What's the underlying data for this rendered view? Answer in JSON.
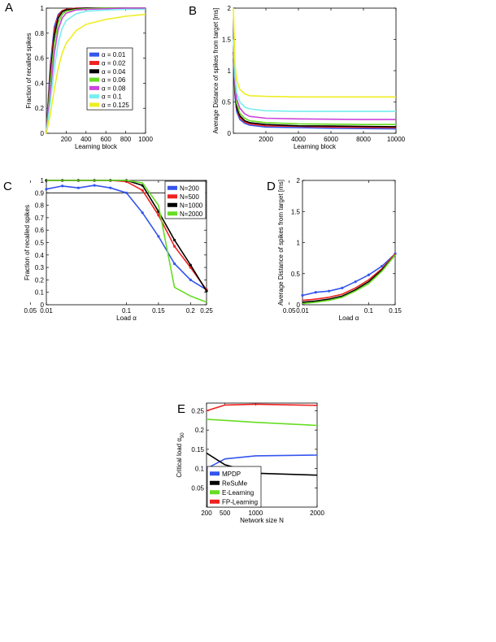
{
  "chart_data": [
    {
      "id": "A",
      "panel_label": "A",
      "type": "line",
      "xlabel": "Learning block",
      "ylabel": "Fraction of recalled spikes",
      "xlim": [
        0,
        1000
      ],
      "ylim": [
        0,
        1
      ],
      "xticks": [
        200,
        400,
        600,
        800,
        1000
      ],
      "xtick_labels": [
        "200",
        "400",
        "600",
        "800",
        "1000"
      ],
      "yticks": [
        0,
        0.2,
        0.4,
        0.6,
        0.8,
        1
      ],
      "ytick_labels": [
        "0",
        "0.2",
        "0.4",
        "0.6",
        "0.8",
        "1"
      ],
      "legend_position": "center-right",
      "series": [
        {
          "name": "α = 0.01",
          "color": "#3355ee",
          "x": [
            0,
            40,
            80,
            120,
            160,
            200,
            300,
            400,
            600,
            800,
            1000
          ],
          "values": [
            0,
            0.55,
            0.85,
            0.95,
            0.98,
            0.99,
            1,
            1,
            1,
            1,
            1
          ]
        },
        {
          "name": "α = 0.02",
          "color": "#ee2222",
          "x": [
            0,
            40,
            80,
            120,
            160,
            200,
            300,
            400,
            600,
            800,
            1000
          ],
          "values": [
            0,
            0.5,
            0.82,
            0.94,
            0.98,
            0.99,
            1,
            1,
            1,
            1,
            1
          ]
        },
        {
          "name": "α = 0.04",
          "color": "#000000",
          "x": [
            0,
            40,
            80,
            120,
            160,
            200,
            300,
            400,
            600,
            800,
            1000
          ],
          "values": [
            0,
            0.45,
            0.78,
            0.92,
            0.97,
            0.985,
            0.995,
            1,
            1,
            1,
            1
          ]
        },
        {
          "name": "α = 0.06",
          "color": "#66dd22",
          "x": [
            0,
            40,
            80,
            120,
            160,
            200,
            300,
            400,
            600,
            800,
            1000
          ],
          "values": [
            0,
            0.4,
            0.72,
            0.88,
            0.95,
            0.975,
            0.99,
            0.995,
            1,
            1,
            1
          ]
        },
        {
          "name": "α = 0.08",
          "color": "#cc44dd",
          "x": [
            0,
            40,
            80,
            120,
            160,
            200,
            300,
            400,
            600,
            800,
            1000
          ],
          "values": [
            0,
            0.33,
            0.64,
            0.83,
            0.92,
            0.96,
            0.985,
            0.99,
            0.995,
            1,
            1
          ]
        },
        {
          "name": "α = 0.1",
          "color": "#77eeee",
          "x": [
            0,
            40,
            80,
            120,
            160,
            200,
            300,
            400,
            600,
            800,
            1000
          ],
          "values": [
            0,
            0.25,
            0.52,
            0.72,
            0.84,
            0.9,
            0.955,
            0.975,
            0.985,
            0.99,
            0.99
          ]
        },
        {
          "name": "α = 0.125",
          "color": "#eeee22",
          "x": [
            0,
            40,
            80,
            120,
            160,
            200,
            300,
            400,
            600,
            800,
            1000
          ],
          "values": [
            0,
            0.15,
            0.35,
            0.52,
            0.64,
            0.72,
            0.82,
            0.87,
            0.91,
            0.935,
            0.95
          ]
        }
      ]
    },
    {
      "id": "B",
      "panel_label": "B",
      "type": "line",
      "xlabel": "Learning block",
      "ylabel": "Average Distance of spikes from target [ms]",
      "xlim": [
        0,
        10000
      ],
      "ylim": [
        0,
        2
      ],
      "xticks": [
        2000,
        4000,
        6000,
        8000,
        10000
      ],
      "xtick_labels": [
        "2000",
        "4000",
        "6000",
        "8000",
        "10000"
      ],
      "yticks": [
        0,
        0.5,
        1,
        1.5,
        2
      ],
      "ytick_labels": [
        "0",
        "0.5",
        "1",
        "1.5",
        "2"
      ],
      "series": [
        {
          "name": "α = 0.01",
          "color": "#3355ee",
          "x": [
            0,
            100,
            200,
            400,
            700,
            1000,
            2000,
            4000,
            6000,
            8000,
            10000
          ],
          "values": [
            1.2,
            0.6,
            0.35,
            0.22,
            0.16,
            0.13,
            0.1,
            0.09,
            0.08,
            0.075,
            0.07
          ]
        },
        {
          "name": "α = 0.02",
          "color": "#ee2222",
          "x": [
            0,
            100,
            200,
            400,
            700,
            1000,
            2000,
            4000,
            6000,
            8000,
            10000
          ],
          "values": [
            1.3,
            0.65,
            0.4,
            0.25,
            0.18,
            0.15,
            0.12,
            0.11,
            0.1,
            0.095,
            0.09
          ]
        },
        {
          "name": "α = 0.04",
          "color": "#000000",
          "x": [
            0,
            100,
            200,
            400,
            700,
            1000,
            2000,
            4000,
            6000,
            8000,
            10000
          ],
          "values": [
            1.3,
            0.7,
            0.42,
            0.28,
            0.2,
            0.17,
            0.14,
            0.12,
            0.115,
            0.11,
            0.105
          ]
        },
        {
          "name": "α = 0.06",
          "color": "#66dd22",
          "x": [
            0,
            100,
            200,
            400,
            700,
            1000,
            2000,
            4000,
            6000,
            8000,
            10000
          ],
          "values": [
            1.35,
            0.75,
            0.48,
            0.32,
            0.24,
            0.2,
            0.17,
            0.15,
            0.145,
            0.14,
            0.14
          ]
        },
        {
          "name": "α = 0.08",
          "color": "#cc44dd",
          "x": [
            0,
            100,
            200,
            400,
            700,
            1000,
            2000,
            4000,
            6000,
            8000,
            10000
          ],
          "values": [
            1.4,
            0.8,
            0.55,
            0.4,
            0.31,
            0.27,
            0.24,
            0.23,
            0.225,
            0.22,
            0.22
          ]
        },
        {
          "name": "α = 0.1",
          "color": "#77eeee",
          "x": [
            0,
            100,
            200,
            400,
            700,
            1000,
            2000,
            4000,
            6000,
            8000,
            10000
          ],
          "values": [
            1.5,
            0.9,
            0.65,
            0.5,
            0.42,
            0.39,
            0.36,
            0.35,
            0.35,
            0.35,
            0.35
          ]
        },
        {
          "name": "α = 0.125",
          "color": "#eeee22",
          "x": [
            0,
            100,
            200,
            400,
            700,
            1000,
            2000,
            4000,
            6000,
            8000,
            10000
          ],
          "values": [
            2.0,
            1.1,
            0.85,
            0.7,
            0.63,
            0.6,
            0.59,
            0.58,
            0.58,
            0.58,
            0.58
          ]
        }
      ]
    },
    {
      "id": "C",
      "panel_label": "C",
      "type": "line",
      "xlabel": "Load α",
      "ylabel": "Fraction of recalled spikes",
      "xscale": "ordinal",
      "xpositions": [
        0.01,
        0.02,
        0.04,
        0.06,
        0.08,
        0.1,
        0.125,
        0.15,
        0.175,
        0.2,
        0.25
      ],
      "xticks": [
        0.01,
        0.05,
        0.1,
        0.15,
        0.2,
        0.25
      ],
      "xtick_labels": [
        "0.01",
        "0.05",
        "0.1",
        "0.15",
        "0.2",
        "0.25"
      ],
      "ylim": [
        0,
        1
      ],
      "yticks": [
        0,
        0.1,
        0.2,
        0.3,
        0.4,
        0.5,
        0.6,
        0.7,
        0.8,
        0.9,
        1
      ],
      "ytick_labels": [
        "0",
        "0.1",
        "0.2",
        "0.3",
        "0.4",
        "0.5",
        "0.6",
        "0.7",
        "0.8",
        "0.9",
        "1"
      ],
      "hline": 0.9,
      "legend_position": "top-right",
      "series": [
        {
          "name": "N=200",
          "color": "#3355ee",
          "markers": true,
          "x": [
            0.01,
            0.02,
            0.04,
            0.06,
            0.08,
            0.1,
            0.125,
            0.15,
            0.175,
            0.2,
            0.25
          ],
          "values": [
            0.93,
            0.955,
            0.94,
            0.96,
            0.94,
            0.9,
            0.74,
            0.55,
            0.33,
            0.2,
            0.12
          ]
        },
        {
          "name": "N=500",
          "color": "#ee2222",
          "markers": true,
          "x": [
            0.01,
            0.02,
            0.04,
            0.06,
            0.08,
            0.1,
            0.125,
            0.15,
            0.175,
            0.2,
            0.25
          ],
          "values": [
            1,
            1,
            1,
            1,
            1,
            0.99,
            0.92,
            0.72,
            0.47,
            0.3,
            0.12
          ]
        },
        {
          "name": "N=1000",
          "color": "#000000",
          "markers": true,
          "x": [
            0.01,
            0.02,
            0.04,
            0.06,
            0.08,
            0.1,
            0.125,
            0.15,
            0.175,
            0.2,
            0.25
          ],
          "values": [
            1,
            1,
            1,
            1,
            1,
            1,
            0.96,
            0.75,
            0.52,
            0.32,
            0.11
          ]
        },
        {
          "name": "N=2000",
          "color": "#66dd22",
          "markers": false,
          "x": [
            0.01,
            0.02,
            0.04,
            0.06,
            0.08,
            0.1,
            0.125,
            0.15,
            0.175,
            0.2,
            0.25
          ],
          "values": [
            1,
            1,
            1,
            1,
            1,
            1,
            0.98,
            0.8,
            0.14,
            0.07,
            0.02
          ]
        }
      ]
    },
    {
      "id": "D",
      "panel_label": "D",
      "type": "line",
      "xlabel": "Load α",
      "ylabel": "Average Distance of spikes from target [ms]",
      "xscale": "ordinal",
      "xpositions": [
        0.01,
        0.02,
        0.04,
        0.06,
        0.08,
        0.1,
        0.125,
        0.15
      ],
      "xticks": [
        0.01,
        0.05,
        0.1,
        0.15
      ],
      "xtick_labels": [
        "0.01",
        "0.05",
        "0.1",
        "0.15"
      ],
      "ylim": [
        0,
        2
      ],
      "yticks": [
        0,
        0.5,
        1,
        1.5,
        2
      ],
      "ytick_labels": [
        "0",
        "0.5",
        "1",
        "1.5",
        "2"
      ],
      "series": [
        {
          "name": "N=200",
          "color": "#3355ee",
          "markers": true,
          "x": [
            0.01,
            0.02,
            0.04,
            0.06,
            0.08,
            0.1,
            0.125,
            0.15
          ],
          "values": [
            0.15,
            0.2,
            0.22,
            0.27,
            0.37,
            0.48,
            0.62,
            0.82
          ]
        },
        {
          "name": "N=500",
          "color": "#ee2222",
          "markers": false,
          "x": [
            0.01,
            0.02,
            0.04,
            0.06,
            0.08,
            0.1,
            0.125,
            0.15
          ],
          "values": [
            0.07,
            0.09,
            0.12,
            0.17,
            0.27,
            0.4,
            0.58,
            0.82
          ]
        },
        {
          "name": "N=1000",
          "color": "#000000",
          "markers": false,
          "x": [
            0.01,
            0.02,
            0.04,
            0.06,
            0.08,
            0.1,
            0.125,
            0.15
          ],
          "values": [
            0.04,
            0.06,
            0.09,
            0.14,
            0.24,
            0.37,
            0.56,
            0.8
          ]
        },
        {
          "name": "N=2000",
          "color": "#66dd22",
          "markers": false,
          "x": [
            0.01,
            0.02,
            0.04,
            0.06,
            0.08,
            0.1,
            0.125,
            0.15
          ],
          "values": [
            0.02,
            0.04,
            0.07,
            0.12,
            0.22,
            0.34,
            0.54,
            0.8
          ]
        }
      ]
    },
    {
      "id": "E",
      "panel_label": "E",
      "type": "line",
      "xlabel": "Network size N",
      "ylabel": "Critical load α",
      "ylabel_sub": "90",
      "xlim": [
        200,
        2000
      ],
      "xticks": [
        200,
        500,
        1000,
        2000
      ],
      "xtick_labels": [
        "200",
        "500",
        "1000",
        "2000"
      ],
      "ylim": [
        0,
        0.27
      ],
      "yticks": [
        0.05,
        0.1,
        0.15,
        0.2,
        0.25
      ],
      "ytick_labels": [
        "0.05",
        "0.1",
        "0.15",
        "0.2",
        "0.25"
      ],
      "legend_position": "bottom-left",
      "series": [
        {
          "name": "MPDP",
          "color": "#3355ee",
          "x": [
            200,
            500,
            1000,
            2000
          ],
          "values": [
            0.1,
            0.125,
            0.133,
            0.135
          ]
        },
        {
          "name": "ReSuMe",
          "color": "#000000",
          "x": [
            200,
            500,
            1000,
            2000
          ],
          "values": [
            0.14,
            0.11,
            0.088,
            0.083
          ]
        },
        {
          "name": "E-Learning",
          "color": "#66dd22",
          "x": [
            200,
            500,
            1000,
            2000
          ],
          "values": [
            0.228,
            0.225,
            0.22,
            0.212
          ]
        },
        {
          "name": "FP-Learning",
          "color": "#ee2222",
          "x": [
            200,
            500,
            1000,
            2000
          ],
          "values": [
            0.25,
            0.265,
            0.267,
            0.264
          ]
        }
      ]
    }
  ]
}
